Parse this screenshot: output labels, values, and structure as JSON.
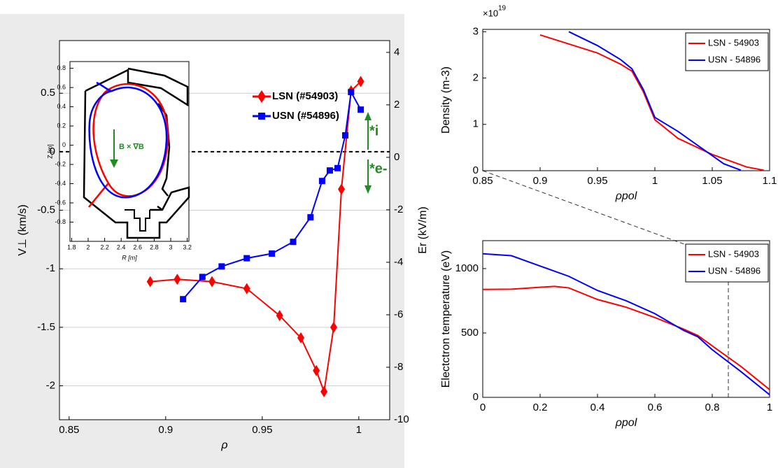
{
  "chart_data": [
    {
      "type": "line",
      "xlabel": "ρ",
      "ylabel": "V⊥ (km/s)",
      "y2label": "Er (kV/m)",
      "xlim": [
        0.845,
        1.016
      ],
      "ylim": [
        -2.29,
        0.95
      ],
      "y2lim": [
        -10,
        4.45
      ],
      "xticks": [
        0.85,
        0.9,
        0.95,
        1
      ],
      "yticks": [
        -2,
        -1.5,
        -1,
        -0.5,
        0,
        0.5
      ],
      "y2ticks": [
        -10,
        -8,
        -6,
        -4,
        -2,
        0,
        2,
        4
      ],
      "grid": true,
      "legend": "top-center",
      "annotations": [
        "*i",
        "*e-"
      ],
      "series": [
        {
          "name": "LSN (#54903)",
          "color": "#ff0000",
          "marker": "diamond",
          "x": [
            0.892,
            0.906,
            0.924,
            0.942,
            0.959,
            0.97,
            0.978,
            0.982,
            0.987,
            0.991,
            0.996,
            1.001
          ],
          "values": [
            -1.11,
            -1.09,
            -1.11,
            -1.17,
            -1.4,
            -1.59,
            -1.87,
            -2.05,
            -1.5,
            -0.32,
            0.52,
            0.6
          ]
        },
        {
          "name": "USN (#54896)",
          "color": "#0000ff",
          "marker": "square",
          "x": [
            0.909,
            0.919,
            0.929,
            0.942,
            0.955,
            0.966,
            0.975,
            0.981,
            0.985,
            0.989,
            0.993,
            0.996,
            1.001
          ],
          "values": [
            -1.26,
            -1.07,
            -0.98,
            -0.91,
            -0.87,
            -0.77,
            -0.56,
            -0.25,
            -0.16,
            -0.14,
            0.14,
            0.51,
            0.36
          ]
        }
      ]
    },
    {
      "type": "diagram",
      "xlabel": "R [m]",
      "ylabel": "Z [m]",
      "annotation": "B × ∇B",
      "xlim": [
        1.78,
        3.22
      ],
      "ylim": [
        -1.0,
        0.87
      ],
      "xticks": [
        1.8,
        2,
        2.2,
        2.4,
        2.6,
        2.8,
        3,
        3.2
      ],
      "yticks": [
        -0.8,
        -0.6,
        -0.4,
        -0.2,
        0,
        0.2,
        0.4,
        0.6,
        0.8
      ]
    },
    {
      "type": "line",
      "xlabel": "ρpol",
      "ylabel": "Density (m-3)",
      "y_multiplier": "×10",
      "y_multiplier_exp": "19",
      "xlim": [
        0.85,
        1.1
      ],
      "ylim": [
        0,
        3.05
      ],
      "xticks": [
        0.85,
        0.9,
        0.95,
        1,
        1.05,
        1.1
      ],
      "yticks": [
        0,
        1,
        2,
        3
      ],
      "grid": false,
      "legend": "top-right",
      "series": [
        {
          "name": "LSN - 54903",
          "color": "#ff0000",
          "marker": "none",
          "x": [
            0.9,
            0.95,
            0.97,
            0.98,
            0.99,
            1.0,
            1.02,
            1.05,
            1.08,
            1.095
          ],
          "values": [
            2.93,
            2.54,
            2.3,
            2.15,
            1.7,
            1.1,
            0.7,
            0.35,
            0.08,
            0.01
          ]
        },
        {
          "name": "USN - 54896",
          "color": "#0000ff",
          "marker": "none",
          "x": [
            0.925,
            0.95,
            0.97,
            0.98,
            0.99,
            1.0,
            1.02,
            1.04,
            1.06,
            1.075
          ],
          "values": [
            3.0,
            2.7,
            2.4,
            2.2,
            1.75,
            1.15,
            0.85,
            0.5,
            0.15,
            0.01
          ]
        }
      ]
    },
    {
      "type": "line",
      "xlabel": "ρpol",
      "ylabel": "Electctron temperature (eV)",
      "xlim": [
        0,
        1
      ],
      "ylim": [
        0,
        1217
      ],
      "xticks": [
        0,
        0.2,
        0.4,
        0.6,
        0.8,
        1
      ],
      "yticks": [
        0,
        500,
        1000
      ],
      "grid": false,
      "legend": "top-right",
      "series": [
        {
          "name": "LSN - 54903",
          "color": "#ff0000",
          "marker": "none",
          "x": [
            0,
            0.1,
            0.2,
            0.25,
            0.3,
            0.4,
            0.5,
            0.6,
            0.7,
            0.75,
            0.8,
            0.9,
            1.0
          ],
          "values": [
            838,
            840,
            855,
            862,
            850,
            760,
            700,
            620,
            530,
            480,
            400,
            240,
            60
          ]
        },
        {
          "name": "USN - 54896",
          "color": "#0000ff",
          "marker": "none",
          "x": [
            0,
            0.1,
            0.2,
            0.3,
            0.4,
            0.5,
            0.6,
            0.7,
            0.75,
            0.8,
            0.9,
            1.0
          ],
          "values": [
            1115,
            1100,
            1020,
            940,
            830,
            750,
            650,
            520,
            470,
            370,
            200,
            20
          ]
        }
      ]
    }
  ]
}
